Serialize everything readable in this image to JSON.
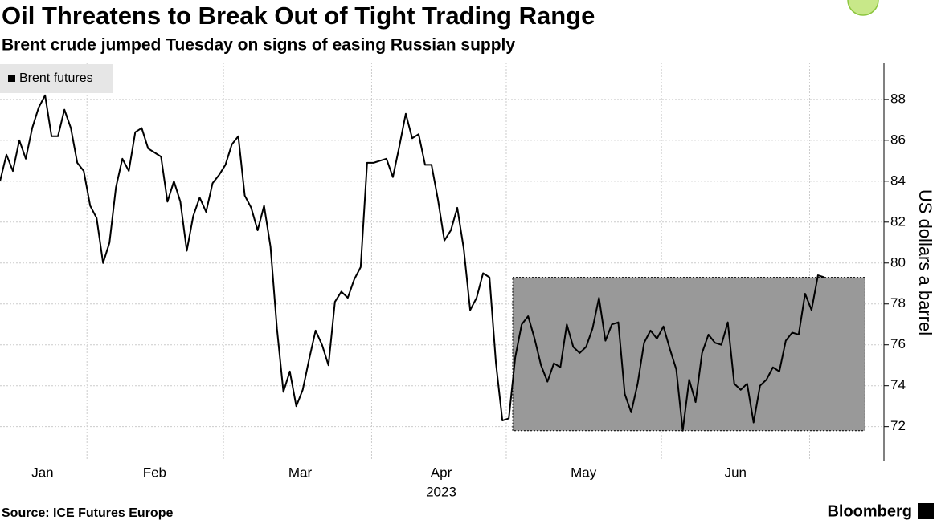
{
  "chart_data": {
    "type": "line",
    "title": "Oil Threatens to Break Out of Tight Trading Range",
    "subtitle": "Brent crude jumped Tuesday on signs of easing Russian supply",
    "ylabel": "US dollars a barrel",
    "source": "Source: ICE Futures Europe",
    "brand": "Bloomberg",
    "year_label": "2023",
    "series": [
      {
        "name": "Brent futures",
        "color": "#000000",
        "values": [
          84.0,
          85.3,
          84.5,
          86.0,
          85.1,
          86.6,
          87.6,
          88.2,
          86.2,
          86.2,
          87.5,
          86.6,
          84.9,
          84.5,
          82.8,
          82.2,
          80.0,
          81.0,
          83.7,
          85.1,
          84.5,
          86.4,
          86.6,
          85.6,
          85.4,
          85.2,
          83.0,
          84.0,
          83.0,
          80.6,
          82.3,
          83.2,
          82.5,
          83.9,
          84.3,
          84.8,
          85.8,
          86.2,
          83.3,
          82.7,
          81.6,
          82.8,
          80.8,
          76.8,
          73.7,
          74.7,
          73.0,
          73.8,
          75.3,
          76.7,
          76.0,
          75.0,
          78.1,
          78.6,
          78.3,
          79.2,
          79.8,
          84.9,
          84.9,
          85.0,
          85.1,
          84.2,
          85.7,
          87.3,
          86.1,
          86.3,
          84.8,
          84.8,
          83.1,
          81.1,
          81.6,
          82.7,
          80.7,
          77.7,
          78.3,
          79.5,
          79.3,
          75.1,
          72.3,
          72.4,
          75.4,
          77.0,
          77.4,
          76.3,
          75.0,
          74.2,
          75.1,
          74.9,
          77.0,
          75.9,
          75.6,
          75.9,
          76.8,
          78.3,
          76.2,
          77.0,
          77.1,
          73.6,
          72.7,
          74.1,
          76.1,
          76.7,
          76.3,
          76.9,
          75.8,
          74.8,
          71.8,
          74.3,
          73.2,
          75.6,
          76.5,
          76.1,
          76.0,
          77.1,
          74.1,
          73.8,
          74.1,
          72.2,
          74.0,
          74.3,
          74.9,
          74.7,
          76.2,
          76.6,
          76.5,
          78.5,
          77.7,
          79.4,
          79.3
        ]
      }
    ],
    "xlim": [
      0,
      134
    ],
    "xticks": [
      {
        "value": 6.6,
        "label": "Jan"
      },
      {
        "value": 24,
        "label": "Feb"
      },
      {
        "value": 46.6,
        "label": "Mar"
      },
      {
        "value": 68.5,
        "label": "Apr"
      },
      {
        "value": 90.6,
        "label": "May"
      },
      {
        "value": 114.2,
        "label": "Jun"
      }
    ],
    "xgrid": [
      13.5,
      34.7,
      57.7,
      78.6,
      102.7,
      125.7
    ],
    "ylim": [
      70.3,
      89.8
    ],
    "yticks": [
      72,
      74,
      76,
      78,
      80,
      82,
      84,
      86,
      88
    ],
    "grid": true,
    "legend": "top-left",
    "range_box": {
      "x": [
        79.6,
        134.3
      ],
      "y": [
        71.8,
        79.3
      ],
      "color": "#999999"
    },
    "highlight_index": 134,
    "highlight_color": "#b5e061"
  }
}
